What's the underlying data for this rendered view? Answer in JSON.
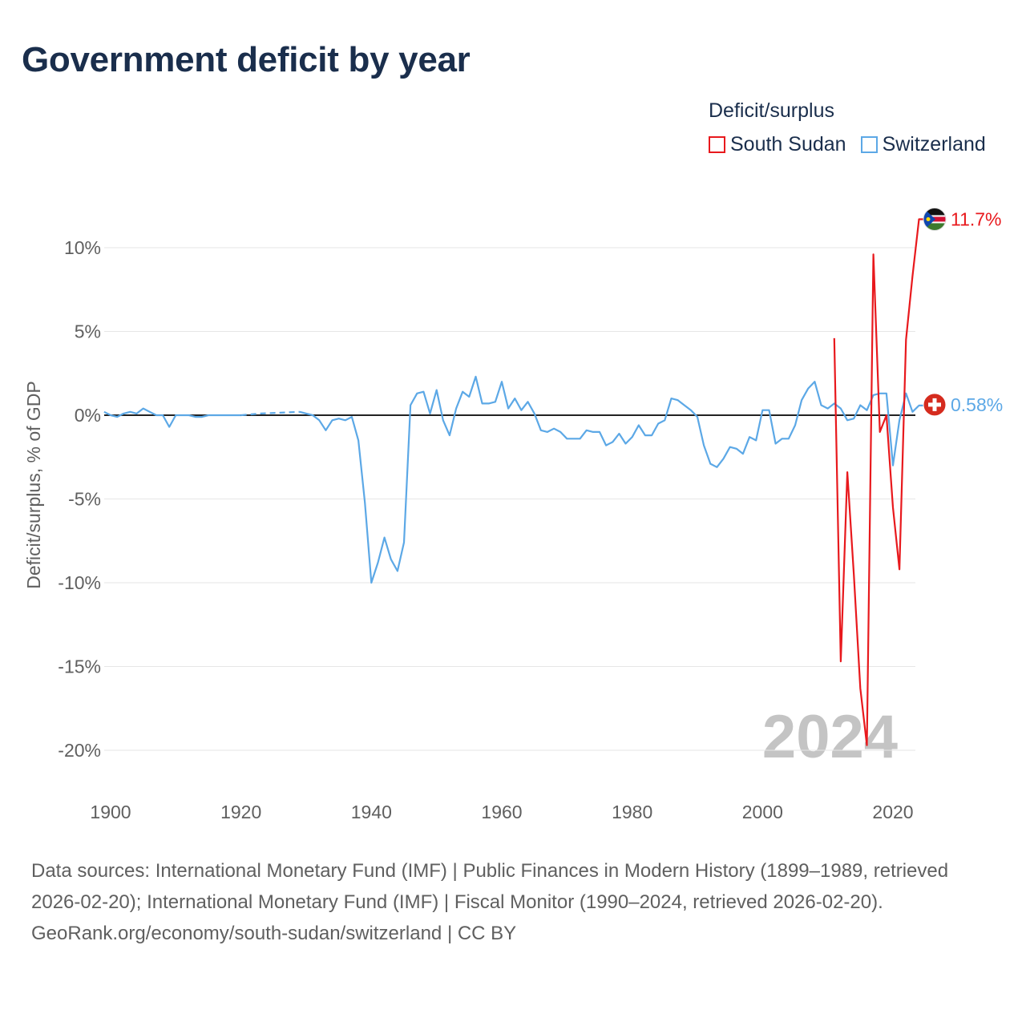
{
  "chart_data": {
    "type": "line",
    "title": "Government deficit by year",
    "ylabel": "Deficit/surplus, % of GDP",
    "xlabel": "",
    "xlim": [
      1900,
      2025
    ],
    "ylim": [
      -22,
      12.5
    ],
    "x_ticks": [
      1900,
      1920,
      1940,
      1960,
      1980,
      2000,
      2020
    ],
    "y_ticks": [
      10,
      5,
      0,
      -5,
      -10,
      -15,
      -20
    ],
    "y_tick_labels": [
      "10%",
      "5%",
      "0%",
      "-5%",
      "-10%",
      "-15%",
      "-20%"
    ],
    "year_watermark": "2024",
    "legend": {
      "title": "Deficit/surplus",
      "entries": [
        {
          "name": "South Sudan",
          "color": "#e8191d"
        },
        {
          "name": "Switzerland",
          "color": "#5ca8e6"
        }
      ],
      "position": "top-right"
    },
    "series": [
      {
        "name": "Switzerland",
        "color": "#5ca8e6",
        "end_label": "0.58%",
        "flag": "switzerland-flag",
        "segments": [
          {
            "dashed": false,
            "points": [
              [
                1899,
                0.2
              ],
              [
                1900,
                0.0
              ],
              [
                1901,
                -0.1
              ],
              [
                1902,
                0.1
              ],
              [
                1903,
                0.2
              ],
              [
                1904,
                0.1
              ],
              [
                1905,
                0.4
              ],
              [
                1906,
                0.2
              ],
              [
                1907,
                0.0
              ],
              [
                1908,
                0.0
              ],
              [
                1909,
                -0.7
              ],
              [
                1910,
                0.0
              ],
              [
                1911,
                0.0
              ],
              [
                1912,
                0.0
              ],
              [
                1913,
                -0.1
              ],
              [
                1914,
                -0.1
              ],
              [
                1915,
                0.0
              ],
              [
                1916,
                0.0
              ],
              [
                1917,
                0.0
              ],
              [
                1918,
                0.0
              ],
              [
                1919,
                0.0
              ],
              [
                1920,
                0.0
              ]
            ]
          },
          {
            "dashed": true,
            "points": [
              [
                1920,
                0.0
              ],
              [
                1923,
                0.1
              ],
              [
                1926,
                0.15
              ],
              [
                1929,
                0.2
              ]
            ]
          },
          {
            "dashed": false,
            "points": [
              [
                1929,
                0.2
              ],
              [
                1930,
                0.1
              ],
              [
                1931,
                0.0
              ],
              [
                1932,
                -0.3
              ],
              [
                1933,
                -0.9
              ],
              [
                1934,
                -0.3
              ],
              [
                1935,
                -0.2
              ],
              [
                1936,
                -0.3
              ],
              [
                1937,
                -0.1
              ],
              [
                1938,
                -1.5
              ],
              [
                1939,
                -5.2
              ],
              [
                1940,
                -10.0
              ],
              [
                1941,
                -8.8
              ],
              [
                1942,
                -7.3
              ],
              [
                1943,
                -8.6
              ],
              [
                1944,
                -9.3
              ],
              [
                1945,
                -7.6
              ],
              [
                1946,
                0.6
              ],
              [
                1947,
                1.3
              ],
              [
                1948,
                1.4
              ],
              [
                1949,
                0.1
              ],
              [
                1950,
                1.5
              ],
              [
                1951,
                -0.3
              ],
              [
                1952,
                -1.2
              ],
              [
                1953,
                0.4
              ],
              [
                1954,
                1.4
              ],
              [
                1955,
                1.1
              ],
              [
                1956,
                2.3
              ],
              [
                1957,
                0.7
              ],
              [
                1958,
                0.7
              ],
              [
                1959,
                0.8
              ],
              [
                1960,
                2.0
              ],
              [
                1961,
                0.4
              ],
              [
                1962,
                1.0
              ],
              [
                1963,
                0.3
              ],
              [
                1964,
                0.8
              ],
              [
                1965,
                0.1
              ],
              [
                1966,
                -0.9
              ],
              [
                1967,
                -1.0
              ],
              [
                1968,
                -0.8
              ],
              [
                1969,
                -1.0
              ],
              [
                1970,
                -1.4
              ],
              [
                1971,
                -1.4
              ],
              [
                1972,
                -1.4
              ],
              [
                1973,
                -0.9
              ],
              [
                1974,
                -1.0
              ],
              [
                1975,
                -1.0
              ],
              [
                1976,
                -1.8
              ],
              [
                1977,
                -1.6
              ],
              [
                1978,
                -1.1
              ],
              [
                1979,
                -1.7
              ],
              [
                1980,
                -1.3
              ],
              [
                1981,
                -0.6
              ],
              [
                1982,
                -1.2
              ],
              [
                1983,
                -1.2
              ],
              [
                1984,
                -0.5
              ],
              [
                1985,
                -0.3
              ],
              [
                1986,
                1.0
              ],
              [
                1987,
                0.9
              ],
              [
                1988,
                0.6
              ],
              [
                1989,
                0.3
              ],
              [
                1990,
                -0.1
              ],
              [
                1991,
                -1.8
              ],
              [
                1992,
                -2.9
              ],
              [
                1993,
                -3.1
              ],
              [
                1994,
                -2.6
              ],
              [
                1995,
                -1.9
              ],
              [
                1996,
                -2.0
              ],
              [
                1997,
                -2.3
              ],
              [
                1998,
                -1.3
              ],
              [
                1999,
                -1.5
              ],
              [
                2000,
                0.3
              ],
              [
                2001,
                0.3
              ],
              [
                2002,
                -1.7
              ],
              [
                2003,
                -1.4
              ],
              [
                2004,
                -1.4
              ],
              [
                2005,
                -0.6
              ],
              [
                2006,
                0.9
              ],
              [
                2007,
                1.6
              ],
              [
                2008,
                2.0
              ],
              [
                2009,
                0.6
              ],
              [
                2010,
                0.4
              ],
              [
                2011,
                0.7
              ],
              [
                2012,
                0.4
              ],
              [
                2013,
                -0.3
              ],
              [
                2014,
                -0.2
              ],
              [
                2015,
                0.6
              ],
              [
                2016,
                0.3
              ],
              [
                2017,
                1.2
              ],
              [
                2018,
                1.3
              ],
              [
                2019,
                1.3
              ],
              [
                2020,
                -3.0
              ],
              [
                2021,
                -0.3
              ],
              [
                2022,
                1.3
              ],
              [
                2023,
                0.2
              ],
              [
                2024,
                0.58
              ],
              [
                2025,
                0.58
              ]
            ]
          }
        ]
      },
      {
        "name": "South Sudan",
        "color": "#e8191d",
        "end_label": "11.7%",
        "flag": "south-sudan-flag",
        "segments": [
          {
            "dashed": false,
            "points": [
              [
                2011,
                4.6
              ],
              [
                2012,
                -14.7
              ],
              [
                2013,
                -3.4
              ],
              [
                2014,
                -9.5
              ],
              [
                2015,
                -16.3
              ],
              [
                2016,
                -19.7
              ],
              [
                2017,
                9.6
              ],
              [
                2018,
                -1.0
              ],
              [
                2019,
                0.0
              ],
              [
                2020,
                -5.5
              ],
              [
                2021,
                -9.2
              ],
              [
                2022,
                4.5
              ],
              [
                2023,
                8.3
              ],
              [
                2024,
                11.7
              ],
              [
                2025,
                11.7
              ]
            ]
          }
        ]
      }
    ]
  },
  "footer": {
    "sources": "Data sources: International Monetary Fund (IMF) | Public Finances in Modern History (1899–1989, retrieved 2026-02-20); International Monetary Fund (IMF) | Fiscal Monitor (1990–2024, retrieved 2026-02-20).",
    "credit": "GeoRank.org/economy/south-sudan/switzerland | CC BY"
  }
}
